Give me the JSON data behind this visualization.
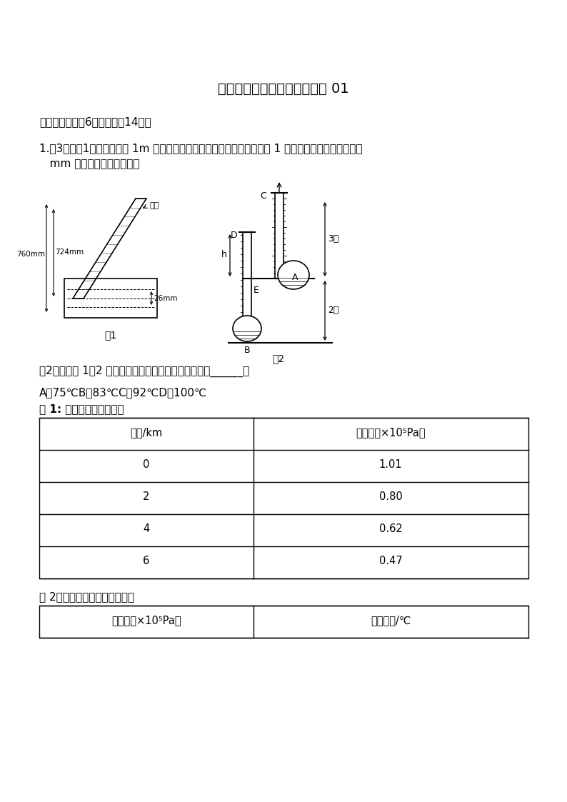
{
  "title": "八年级物理下学期期中测试卷 01",
  "section1": "一．填空题（共6小题，满分14分）",
  "q1_text": "1.（3分）（1）在某地利用 1m 长的玻璃管测量大气压值，实验装置如图 1 所示。当地的大气压强等于",
  "q1_text2": "   mm 高水银柱产生的压强。",
  "q2_text": "（2）通过表 1、2 推断海拔五千多米处水的沸点可能是______。",
  "q2_options": "A．75℃B．83℃C．92℃D．100℃",
  "table1_title": "表 1: 海拔与大气压的关系",
  "table1_header1": "海拔/km",
  "table1_header2": "大气压（×10⁵Pa）",
  "table1_data": [
    [
      "0",
      "1.01"
    ],
    [
      "2",
      "0.80"
    ],
    [
      "4",
      "0.62"
    ],
    [
      "6",
      "0.47"
    ]
  ],
  "table2_title": "表 2：大气压与水的沸点的关系",
  "table2_header1": "大气压（×10⁵Pa）",
  "table2_header2": "水的沸点/℃",
  "fig1_label": "图1",
  "fig2_label": "图2",
  "label_zhenkong": "真空",
  "label_760": "760mm",
  "label_724": "724mm",
  "label_26": "26mm",
  "fig2_labels": [
    "C",
    "D",
    "E",
    "A",
    "B",
    "h",
    "3米",
    "2米"
  ],
  "bg_color": "#ffffff"
}
